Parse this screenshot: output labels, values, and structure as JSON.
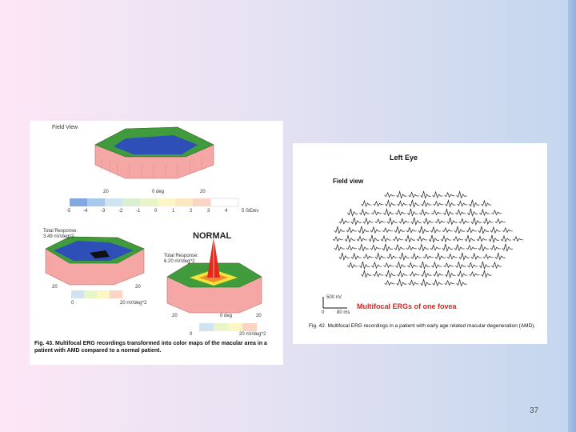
{
  "slide": {
    "page_number": "37"
  },
  "left_figure": {
    "field_view_label": "Field View",
    "top_plot_axis": {
      "left": "20",
      "center": "0 deg",
      "right": "20"
    },
    "scale_labels": [
      "-5",
      "-4",
      "-3",
      "-2",
      "-1",
      "0",
      "1",
      "2",
      "3",
      "4",
      "5 StDev"
    ],
    "patient_total_response": "Total Response:",
    "patient_total_response_value": "3.49 nV/deg^2",
    "patient_axis": {
      "left": "20",
      "right": "20"
    },
    "patient_scale_start": "0",
    "patient_scale_end": "20 nV/deg^2",
    "normal_label": "NORMAL",
    "normal_total_response": "Total Response:",
    "normal_total_response_value": "6.20 nV/deg^2",
    "normal_axis": {
      "left": "20",
      "center": "0 deg",
      "right": "20"
    },
    "normal_scale_start": "0",
    "normal_scale_end": "20 nV/deg^2",
    "caption": "Fig. 43. Multifocal ERG recordings transformed into color maps of the macular area in a patient with AMD compared to a normal patient."
  },
  "right_figure": {
    "title": "Left Eye",
    "field_view_label": "Field view",
    "scale_bar_voltage": "500 nV",
    "scale_bar_zero": "0",
    "scale_bar_time": "80 ms",
    "highlight_label": "Multifocal ERGs of one fovea",
    "caption": "Fig. 42. Multifocal ERG recordings in a patient with early age related macular degeneration (AMD)."
  },
  "colors": {
    "surface_green": "#3f9b3c",
    "surface_blue": "#2e4fb8",
    "wall_pink": "#f4a7a4",
    "peak_red": "#e02a1c",
    "highlight_red": "#d8251c"
  }
}
